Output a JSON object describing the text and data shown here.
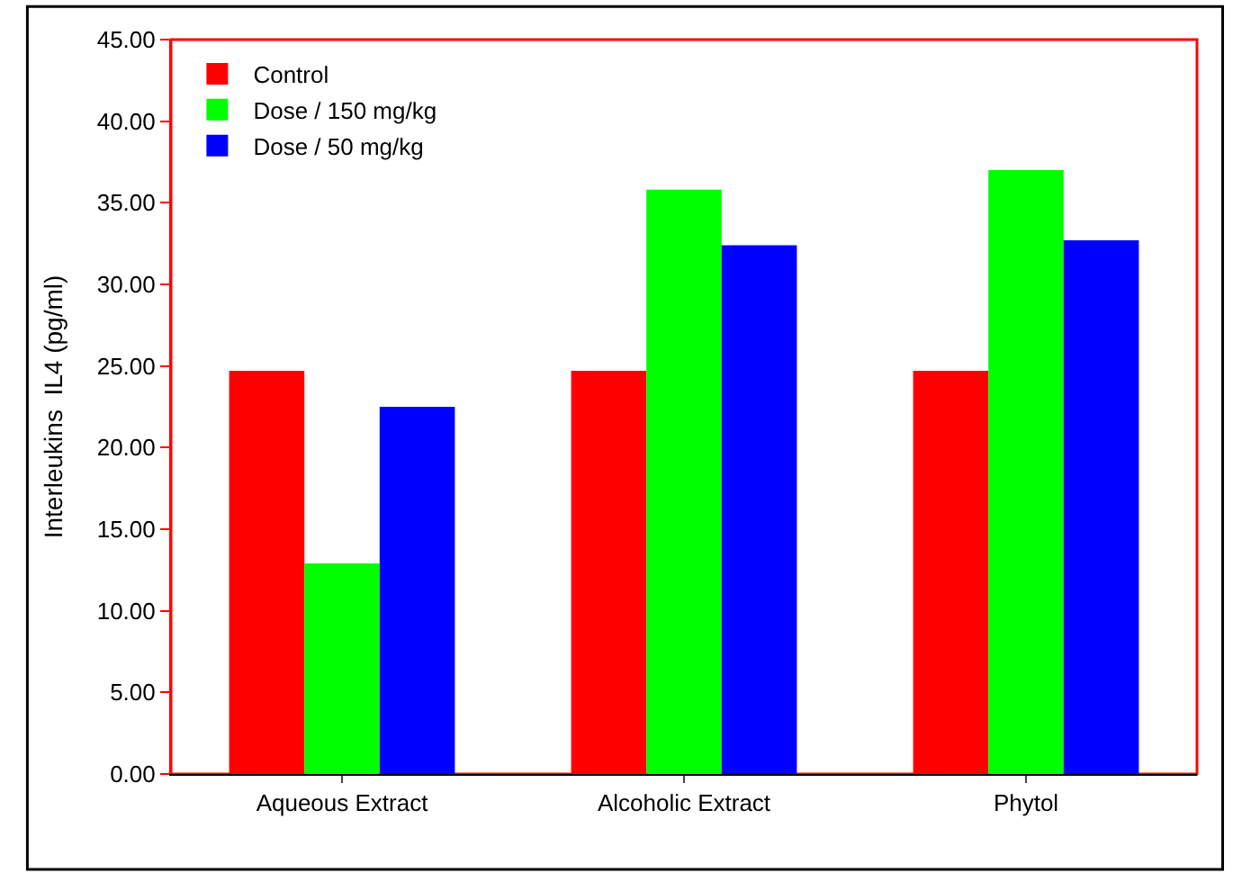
{
  "chart_data": {
    "type": "bar",
    "ylabel": "Interleukins  IL4 (pg/ml)",
    "categories": [
      "Aqueous Extract",
      "Alcoholic Extract",
      "Phytol"
    ],
    "series": [
      {
        "name": "Control",
        "color": "#ff0000",
        "values": [
          24.7,
          24.7,
          24.7
        ]
      },
      {
        "name": "Dose / 150 mg/kg",
        "color": "#00ff00",
        "values": [
          12.9,
          35.8,
          37.0
        ]
      },
      {
        "name": "Dose / 50 mg/kg",
        "color": "#0000ff",
        "values": [
          22.5,
          32.4,
          32.7
        ]
      }
    ],
    "ylim": [
      0,
      45
    ],
    "yticks": [
      {
        "value": 0,
        "label": "0.00"
      },
      {
        "value": 5,
        "label": "5.00"
      },
      {
        "value": 10,
        "label": "10.00"
      },
      {
        "value": 15,
        "label": "15.00"
      },
      {
        "value": 20,
        "label": "20.00"
      },
      {
        "value": 25,
        "label": "25.00"
      },
      {
        "value": 30,
        "label": "30.00"
      },
      {
        "value": 35,
        "label": "35.00"
      },
      {
        "value": 40,
        "label": "40.00"
      },
      {
        "value": 45,
        "label": "45.00"
      }
    ],
    "legend": "top left",
    "grid": false
  }
}
